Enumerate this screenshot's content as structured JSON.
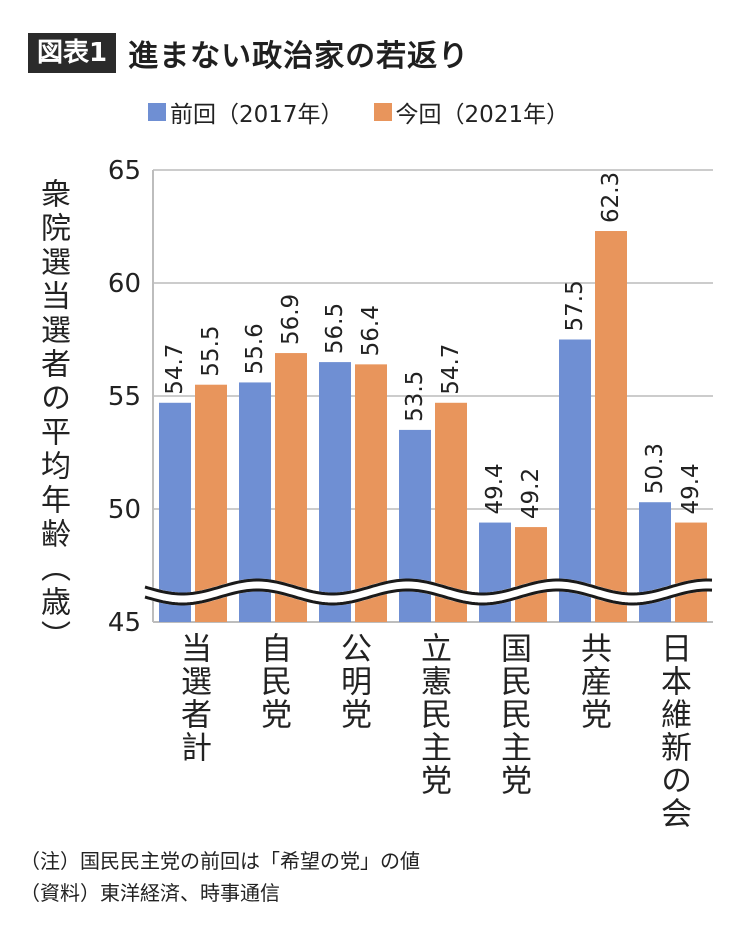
{
  "header": {
    "badge": "図表1",
    "title": "進まない政治家の若返り"
  },
  "colors": {
    "previous": "#6f8fd3",
    "current": "#e8955c",
    "grid": "#cccccc",
    "axis": "#bdbdbd"
  },
  "chart_data": {
    "type": "bar",
    "title": "進まない政治家の若返り",
    "ylabel": "衆院選当選者の平均年齢（歳）",
    "xlabel": "",
    "categories": [
      "当選者計",
      "自民党",
      "公明党",
      "立憲民主党",
      "国民民主党",
      "共産党",
      "日本維新の会"
    ],
    "series": [
      {
        "name": "前回（2017年）",
        "values": [
          54.7,
          55.6,
          56.5,
          53.5,
          49.4,
          57.5,
          50.3
        ]
      },
      {
        "name": "今回（2021年）",
        "values": [
          55.5,
          56.9,
          56.4,
          54.7,
          49.2,
          62.3,
          49.4
        ]
      }
    ],
    "value_labels": [
      [
        "54.7",
        "55.6",
        "56.5",
        "53.5",
        "49.4",
        "57.5",
        "50.3"
      ],
      [
        "55.5",
        "56.9",
        "56.4",
        "54.7",
        "49.2",
        "62.3",
        "49.4"
      ]
    ],
    "yticks": [
      "45",
      "50",
      "55",
      "60",
      "65"
    ],
    "ylim": [
      45,
      65
    ],
    "axis_break": true,
    "grid": true,
    "legend": "top"
  },
  "notes": [
    "（注）国民民主党の前回は「希望の党」の値",
    "（資料）東洋経済、時事通信"
  ]
}
